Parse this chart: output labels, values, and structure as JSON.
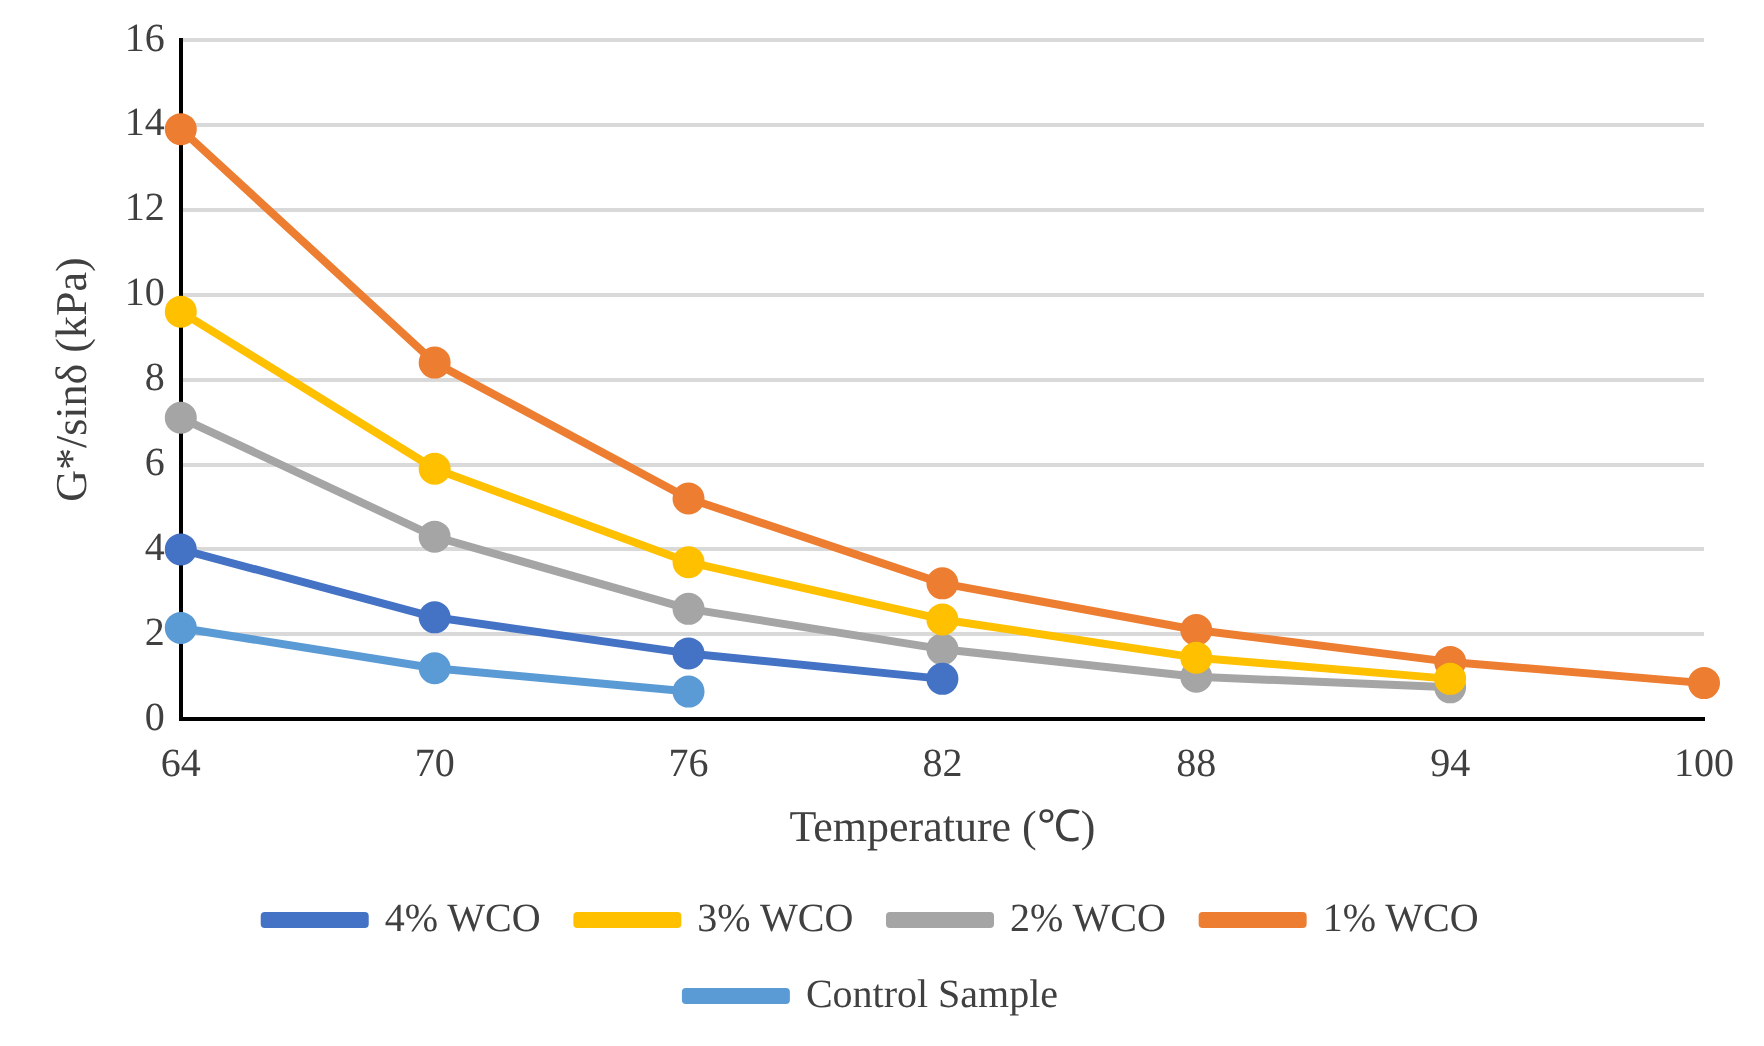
{
  "chart_data": {
    "type": "line",
    "xlabel": "Temperature (℃)",
    "ylabel": "G*/sinδ (kPa)",
    "categories": [
      "64",
      "70",
      "76",
      "82",
      "88",
      "94",
      "100"
    ],
    "series": [
      {
        "name": "Control Sample",
        "color": "#5b9bd5",
        "values": [
          2.15,
          1.2,
          0.65,
          null,
          null,
          null,
          null
        ]
      },
      {
        "name": "1% WCO",
        "color": "#ed7d31",
        "values": [
          13.9,
          8.4,
          5.2,
          3.2,
          2.1,
          1.35,
          0.85
        ]
      },
      {
        "name": "2% WCO",
        "color": "#a5a5a5",
        "values": [
          7.1,
          4.3,
          2.6,
          1.65,
          1.0,
          0.75,
          null
        ]
      },
      {
        "name": "3% WCO",
        "color": "#ffc000",
        "values": [
          9.6,
          5.9,
          3.7,
          2.35,
          1.45,
          0.95,
          null
        ]
      },
      {
        "name": "4% WCO",
        "color": "#4472c4",
        "values": [
          4.0,
          2.4,
          1.55,
          0.95,
          null,
          null,
          null
        ]
      }
    ],
    "ylim": [
      0,
      16
    ],
    "yticks": [
      0,
      2,
      4,
      6,
      8,
      10,
      12,
      14,
      16
    ],
    "grid": "y",
    "legend": "bottom",
    "marker": "circle",
    "line_style": "solid"
  }
}
